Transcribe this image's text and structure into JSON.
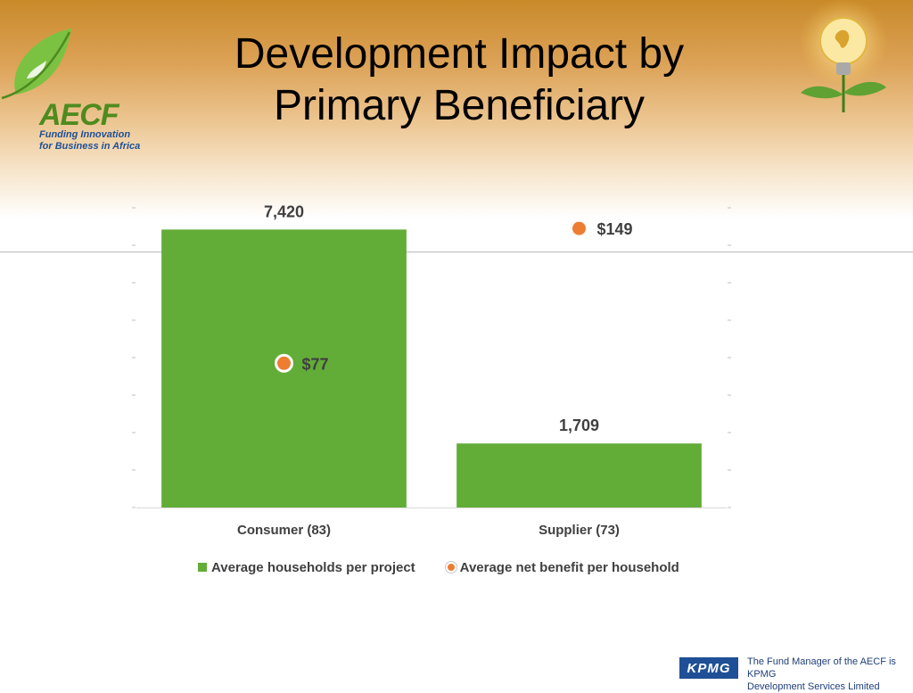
{
  "slide": {
    "title_line1": "Development Impact by",
    "title_line2": "Primary Beneficiary"
  },
  "logo": {
    "brand": "AECF",
    "tagline_line1": "Funding Innovation",
    "tagline_line2": "for Business in Africa"
  },
  "footer": {
    "logo_text": "KPMG",
    "text_line1": "The Fund Manager of the AECF is KPMG",
    "text_line2": "Development Services Limited"
  },
  "chart_data": {
    "type": "bar",
    "categories": [
      "Consumer (83)",
      "Supplier (73)"
    ],
    "series": [
      {
        "name": "Average households per project",
        "kind": "bar",
        "values": [
          7420,
          1709
        ],
        "labels": [
          "7,420",
          "1,709"
        ],
        "color": "#62ad37",
        "axis": "left"
      },
      {
        "name": "Average net benefit per household",
        "kind": "marker",
        "values": [
          77,
          149
        ],
        "labels": [
          "$77",
          "$149"
        ],
        "color": "#ed7d31",
        "axis": "right"
      }
    ],
    "ylim_left": [
      0,
      8000
    ],
    "ylim_right": [
      0,
      160
    ],
    "grid": false,
    "legend_position": "bottom"
  },
  "colors": {
    "bar": "#62ad37",
    "marker": "#ed7d31",
    "label": "#404040"
  }
}
